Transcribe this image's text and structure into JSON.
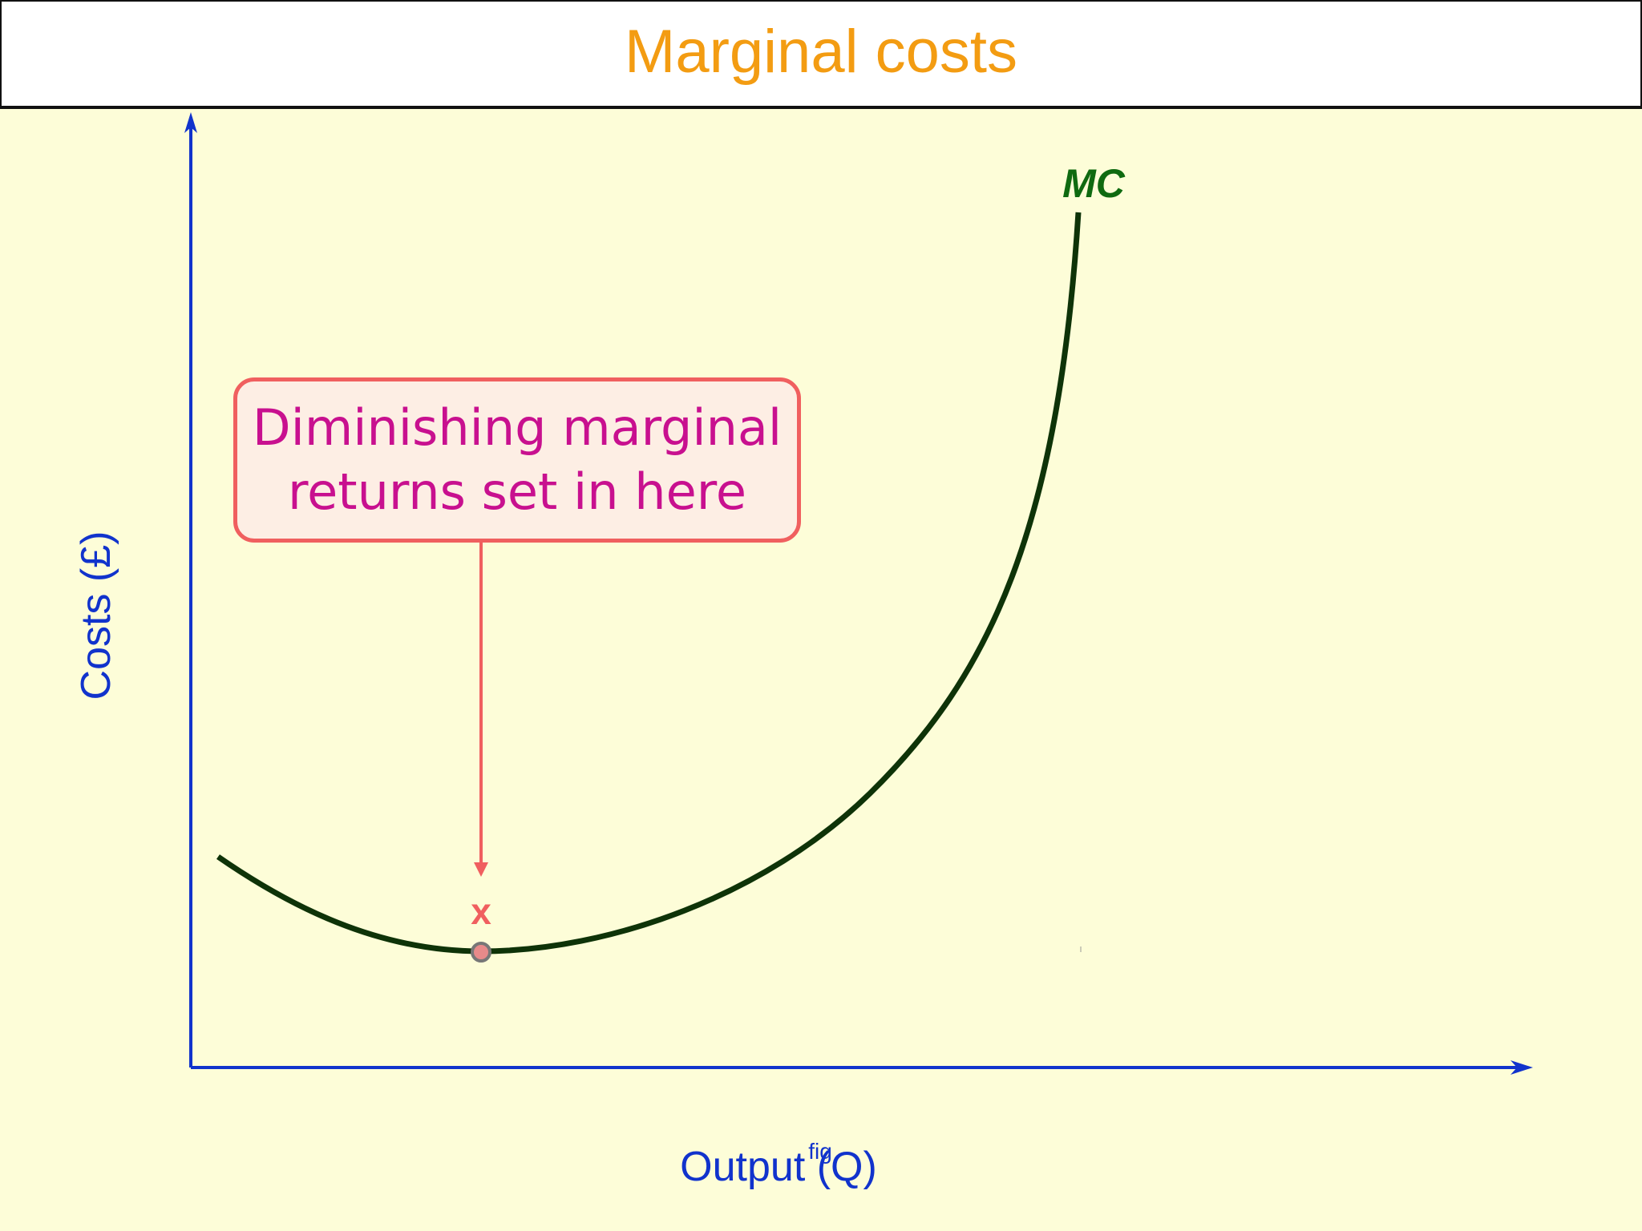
{
  "title": "Marginal costs",
  "colors": {
    "title": "#f39c12",
    "axis": "#1133cc",
    "curve": "#0e3308",
    "curve_label": "#0f6a10",
    "callout_border": "#f05f5f",
    "callout_text": "#c8108f",
    "background": "#fdfdd8"
  },
  "axes": {
    "x_label": "Output (Q)",
    "y_label": "Costs (£)",
    "x_artifact": "fig"
  },
  "curve": {
    "label": "MC",
    "shape": "U-shaped, falls to a minimum then rises steeply"
  },
  "callout": {
    "line1": "Diminishing marginal",
    "line2": "returns set in here",
    "marker": "x"
  }
}
